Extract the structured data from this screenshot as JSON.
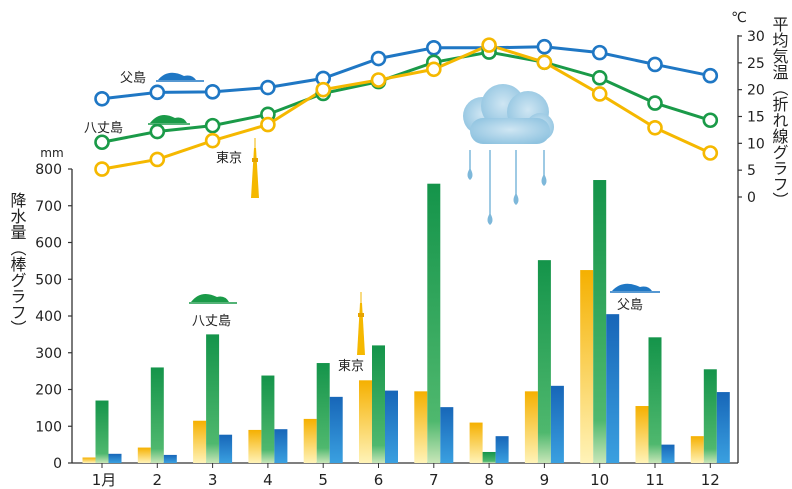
{
  "chart_data": [
    {
      "type": "bar",
      "ylabel": "降水量（棒グラフ）",
      "yunit": "mm",
      "ylim": [
        0,
        800
      ],
      "yticks": [
        0,
        100,
        200,
        300,
        400,
        500,
        600,
        700,
        800
      ],
      "categories": [
        "1月",
        "2",
        "3",
        "4",
        "5",
        "6",
        "7",
        "8",
        "9",
        "10",
        "11",
        "12"
      ],
      "series": [
        {
          "name": "東京",
          "color": "#f5b800",
          "values": [
            15,
            42,
            115,
            90,
            120,
            225,
            195,
            110,
            195,
            525,
            155,
            73
          ]
        },
        {
          "name": "八丈島",
          "color": "#1a9a48",
          "values": [
            170,
            260,
            350,
            238,
            272,
            320,
            760,
            30,
            552,
            770,
            342,
            255
          ]
        },
        {
          "name": "父島",
          "color": "#1f77c4",
          "values": [
            25,
            22,
            77,
            92,
            180,
            197,
            152,
            73,
            210,
            405,
            50,
            193
          ]
        }
      ]
    },
    {
      "type": "line",
      "ylabel": "平均気温（折れ線グラフ）",
      "yunit": "℃",
      "ylim": [
        0,
        30
      ],
      "yticks": [
        0,
        5,
        10,
        15,
        20,
        25,
        30
      ],
      "series": [
        {
          "name": "父島",
          "color": "#1f77c4",
          "values": [
            18.3,
            19.5,
            19.6,
            20.4,
            22.1,
            25.8,
            27.8,
            27.8,
            28.0,
            26.9,
            24.7,
            22.6
          ]
        },
        {
          "name": "八丈島",
          "color": "#1a9a48",
          "values": [
            10.2,
            12.2,
            13.3,
            15.4,
            19.3,
            21.5,
            25.1,
            27.0,
            25.1,
            22.2,
            17.5,
            14.3
          ]
        },
        {
          "name": "東京",
          "color": "#f5b800",
          "values": [
            5.2,
            7.0,
            10.5,
            13.5,
            20.0,
            21.8,
            23.8,
            28.3,
            25.1,
            19.2,
            12.9,
            8.2
          ]
        }
      ]
    }
  ],
  "labels": {
    "tokyo": "東京",
    "hachijo": "八丈島",
    "chichi": "父島",
    "rain_unit": "mm",
    "rain_title": "降水量（棒グラフ）",
    "temp_unit": "℃",
    "temp_title": "平均気温（折れ線グラフ）"
  },
  "icons": {
    "tower": "tokyo-skytree-icon",
    "island_green": "hachijo-island-icon",
    "island_blue": "chichi-island-icon",
    "rain": "rain-cloud-icon"
  }
}
